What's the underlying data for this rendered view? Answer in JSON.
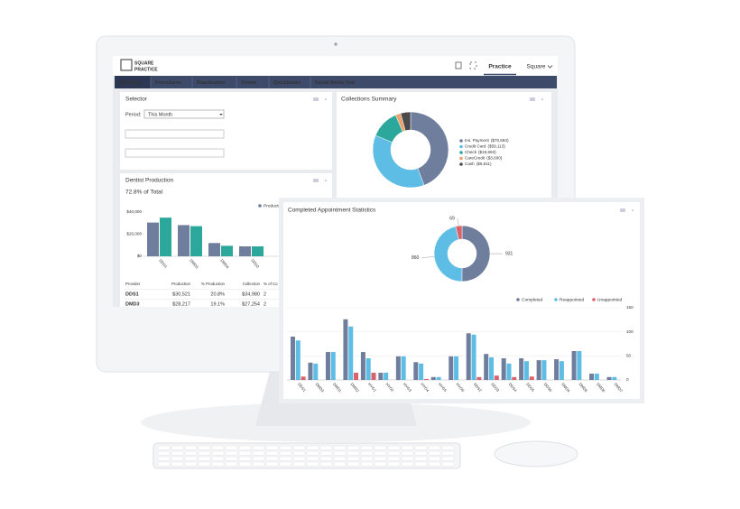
{
  "header": {
    "logo": [
      "SQUARE",
      "PRACTICE"
    ],
    "tabs": [
      "Practice",
      "Square"
    ]
  },
  "nav": {
    "items": [
      "Overview",
      "Procedures",
      "Reactivation",
      "Trends",
      "Quickbooks",
      "Social Media Test"
    ],
    "active": 0
  },
  "selector": {
    "title": "Selector",
    "period_label": "Period:",
    "period_value": "This Month"
  },
  "table": {
    "columns": [
      "Provider",
      "Production",
      "% Production",
      "Collection",
      "% of Co"
    ],
    "rows": [
      [
        "DDS1",
        "$30,521",
        "20.8%",
        "$34,980",
        "2"
      ],
      [
        "DMD3",
        "$28,217",
        "19.1%",
        "$27,254",
        "2"
      ]
    ]
  },
  "chart_data": [
    {
      "type": "pie",
      "title": "Collections Summary",
      "labels": [
        "Ins. Payment",
        "Credit Card",
        "Check",
        "CareCredit",
        "Cash"
      ],
      "values": [
        70684,
        59113,
        19693,
        3600,
        6811
      ],
      "value_labels": [
        "($70,684)",
        "($59,113)",
        "($19,693)",
        "($3,600)",
        "($6,811)"
      ],
      "colors": [
        "#6f7e9c",
        "#5dbde4",
        "#2ba79b",
        "#e9a26d",
        "#4a4a4a"
      ]
    },
    {
      "type": "bar",
      "title": "Dentist Production",
      "subtitle": "72.8% of Total",
      "categories": [
        "DDS1",
        "DMD3",
        "DMD4",
        "DDS2"
      ],
      "series": [
        {
          "name": "Production",
          "color": "#6f7e9c",
          "values": [
            30521,
            28217,
            12000,
            9000
          ]
        },
        {
          "color": "#2ba79b",
          "values": [
            34980,
            27254,
            9500,
            9000
          ]
        }
      ],
      "ylim": [
        0,
        40000
      ],
      "yticks": [
        {
          "value": 0,
          "label": "$0"
        },
        {
          "value": 20000,
          "label": "$20,000"
        },
        {
          "value": 40000,
          "label": "$40,000"
        }
      ],
      "grid": false
    },
    {
      "type": "pie",
      "title": "Completed Appointment Statistics",
      "values": [
        931,
        860,
        69
      ],
      "colors": [
        "#6f7e9c",
        "#5dbde4",
        "#d9626b"
      ]
    },
    {
      "type": "bar",
      "categories": [
        "DDS1",
        "DMD3",
        "DMD1",
        "DMD2",
        "HYG1",
        "HYG2",
        "HYG3",
        "HYG4",
        "HYG5",
        "HYG6",
        "DDS2",
        "DDS3",
        "DDS4",
        "DDS5",
        "DDS6",
        "DMD4",
        "DMD5",
        "DMD6",
        "DMD7"
      ],
      "series": [
        {
          "name": "Completed",
          "color": "#6f7e9c",
          "values": [
            90,
            36,
            58,
            126,
            58,
            15,
            49,
            37,
            6,
            49,
            97,
            54,
            45,
            45,
            41,
            43,
            60,
            13,
            6
          ]
        },
        {
          "name": "Reappointed",
          "color": "#5dbde4",
          "values": [
            82,
            34,
            58,
            111,
            45,
            15,
            49,
            34,
            6,
            49,
            94,
            47,
            34,
            39,
            41,
            39,
            60,
            13,
            6
          ]
        },
        {
          "name": "Unappointed",
          "color": "#d9626b",
          "values": [
            7,
            0,
            0,
            15,
            15,
            0,
            0,
            2,
            0,
            0,
            6,
            9,
            6,
            7,
            0,
            0,
            0,
            0,
            0
          ]
        }
      ],
      "ylim": [
        0,
        150
      ],
      "yticks": [
        0,
        50,
        100,
        150
      ],
      "grid": true
    }
  ]
}
